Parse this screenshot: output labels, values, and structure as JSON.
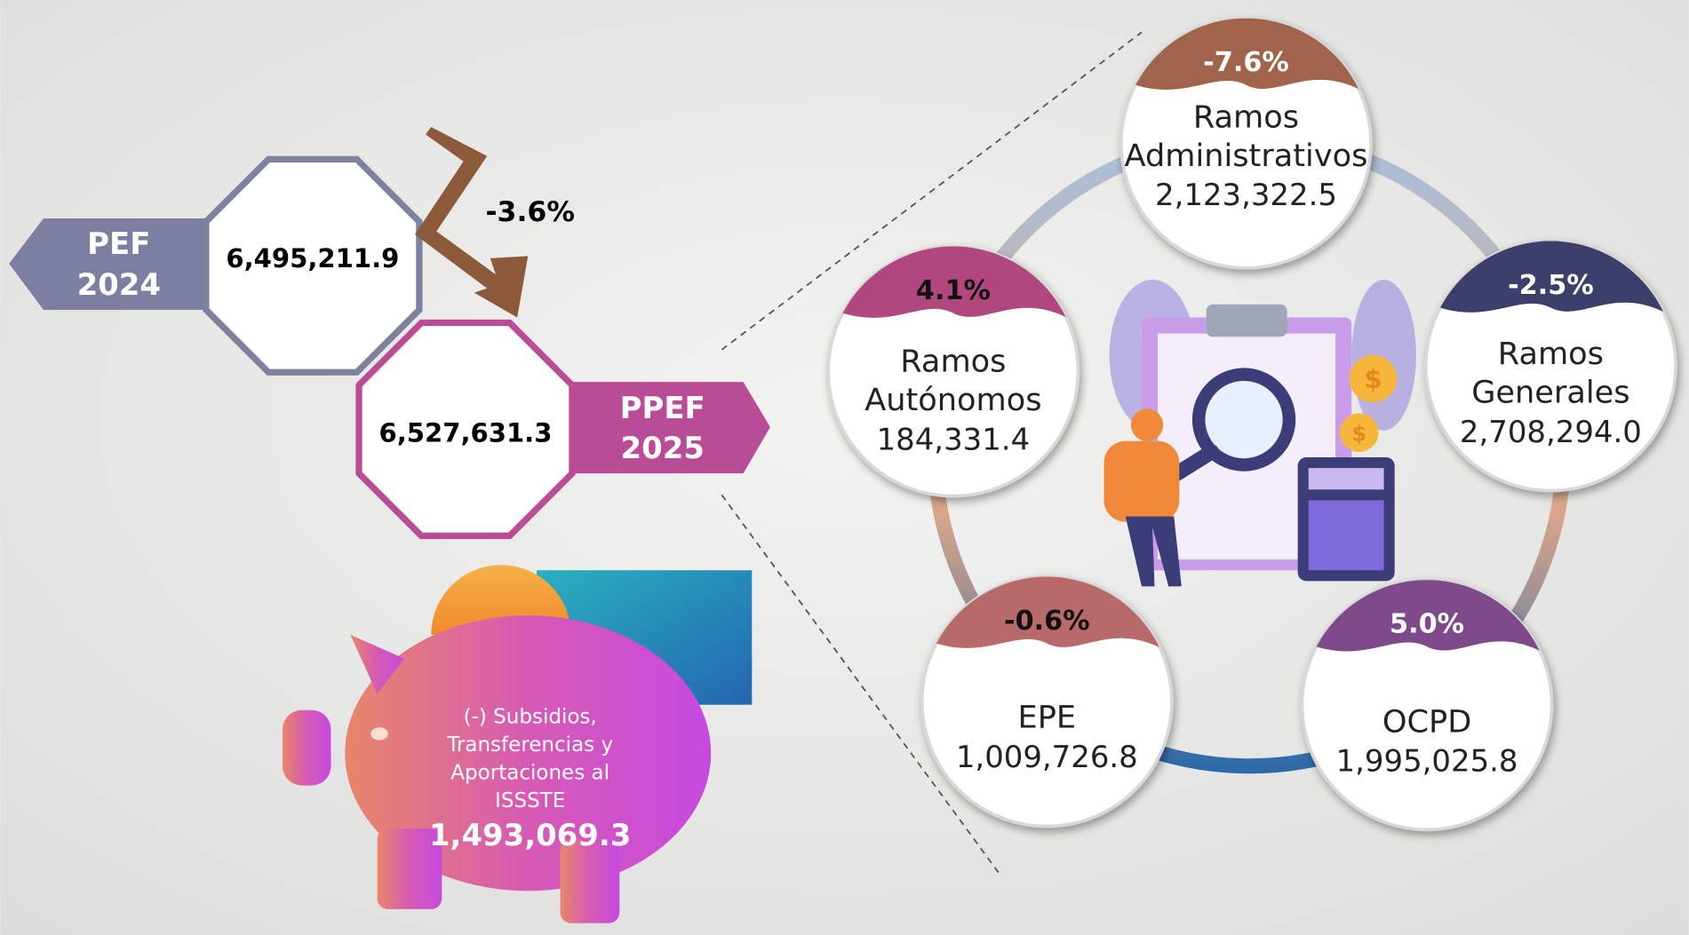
{
  "pef_2024": {
    "label_lines": [
      "PEF",
      "2024"
    ],
    "value": "6,495,211.9"
  },
  "ppef_2025": {
    "label_lines": [
      "PPEF",
      "2025"
    ],
    "value": "6,527,631.3"
  },
  "change": "-3.6%",
  "subsidies": {
    "lines": [
      "(-) Subsidios,",
      "Transferencias y",
      "Aportaciones al",
      "ISSSTE"
    ],
    "value": "1,493,069.3"
  },
  "nodes": [
    {
      "change": "-7.6%",
      "label_lines": [
        "Ramos",
        "Administrativos"
      ],
      "value": "2,123,322.5",
      "color": "#a0644a"
    },
    {
      "change": "4.1%",
      "label_lines": [
        "Ramos",
        "Autónomos"
      ],
      "value": "184,331.4",
      "color": "#b0487f"
    },
    {
      "change": "-2.5%",
      "label_lines": [
        "Ramos",
        "Generales"
      ],
      "value": "2,708,294.0",
      "color": "#3c3f6a"
    },
    {
      "change": "-0.6%",
      "label_lines": [
        "EPE"
      ],
      "value": "1,009,726.8",
      "color": "#b86a6a"
    },
    {
      "change": "5.0%",
      "label_lines": [
        "OCPD"
      ],
      "value": "1,995,025.8",
      "color": "#7e4a8a"
    }
  ]
}
